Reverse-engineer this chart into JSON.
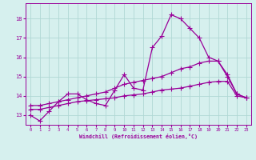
{
  "xlabel": "Windchill (Refroidissement éolien,°C)",
  "bg_color": "#d6f0ee",
  "grid_color": "#b0d8d4",
  "line_color": "#990099",
  "x_values": [
    0,
    1,
    2,
    3,
    4,
    5,
    6,
    7,
    8,
    9,
    10,
    11,
    12,
    13,
    14,
    15,
    16,
    17,
    18,
    19,
    20,
    21,
    22,
    23
  ],
  "line1": [
    13.0,
    12.7,
    13.2,
    13.7,
    14.1,
    14.1,
    13.8,
    13.6,
    13.5,
    14.3,
    15.1,
    14.4,
    14.3,
    16.5,
    17.1,
    18.2,
    18.0,
    17.5,
    17.0,
    16.0,
    15.8,
    15.1,
    14.1,
    13.9
  ],
  "line2": [
    13.5,
    13.5,
    13.6,
    13.7,
    13.8,
    13.9,
    14.0,
    14.1,
    14.2,
    14.4,
    14.6,
    14.7,
    14.8,
    14.9,
    15.0,
    15.2,
    15.4,
    15.5,
    15.7,
    15.8,
    15.8,
    15.0,
    14.1,
    13.9
  ],
  "line3": [
    13.3,
    13.3,
    13.4,
    13.5,
    13.6,
    13.7,
    13.75,
    13.8,
    13.85,
    13.9,
    14.0,
    14.05,
    14.1,
    14.2,
    14.3,
    14.35,
    14.4,
    14.5,
    14.6,
    14.7,
    14.75,
    14.75,
    14.0,
    13.9
  ],
  "ylim": [
    12.5,
    18.8
  ],
  "yticks": [
    13,
    14,
    15,
    16,
    17,
    18
  ],
  "xticks": [
    0,
    1,
    2,
    3,
    4,
    5,
    6,
    7,
    8,
    9,
    10,
    11,
    12,
    13,
    14,
    15,
    16,
    17,
    18,
    19,
    20,
    21,
    22,
    23
  ]
}
